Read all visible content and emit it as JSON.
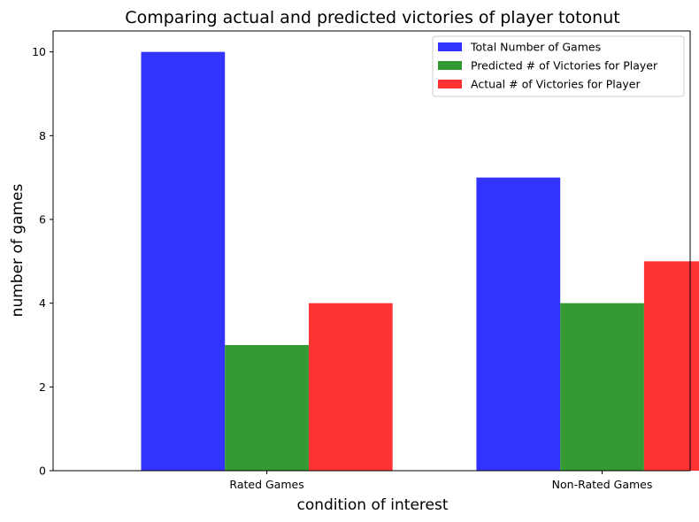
{
  "chart_data": {
    "type": "bar",
    "title": "Comparing actual and predicted victories of player totonut",
    "xlabel": "condition of interest",
    "ylabel": "number of games",
    "categories": [
      "Rated Games",
      "Non-Rated Games"
    ],
    "series": [
      {
        "name": "Total Number of Games",
        "values": [
          10,
          7
        ],
        "color": "#3333ff"
      },
      {
        "name": "Predicted # of Victories for Player",
        "values": [
          3,
          4
        ],
        "color": "#339933"
      },
      {
        "name": "Actual # of Victories for Player",
        "values": [
          4,
          5
        ],
        "color": "#ff3333"
      }
    ],
    "ylim": [
      0,
      10.5
    ],
    "yticks": [
      0,
      2,
      4,
      6,
      8,
      10
    ],
    "grid": false,
    "legend_position": "top-right"
  }
}
